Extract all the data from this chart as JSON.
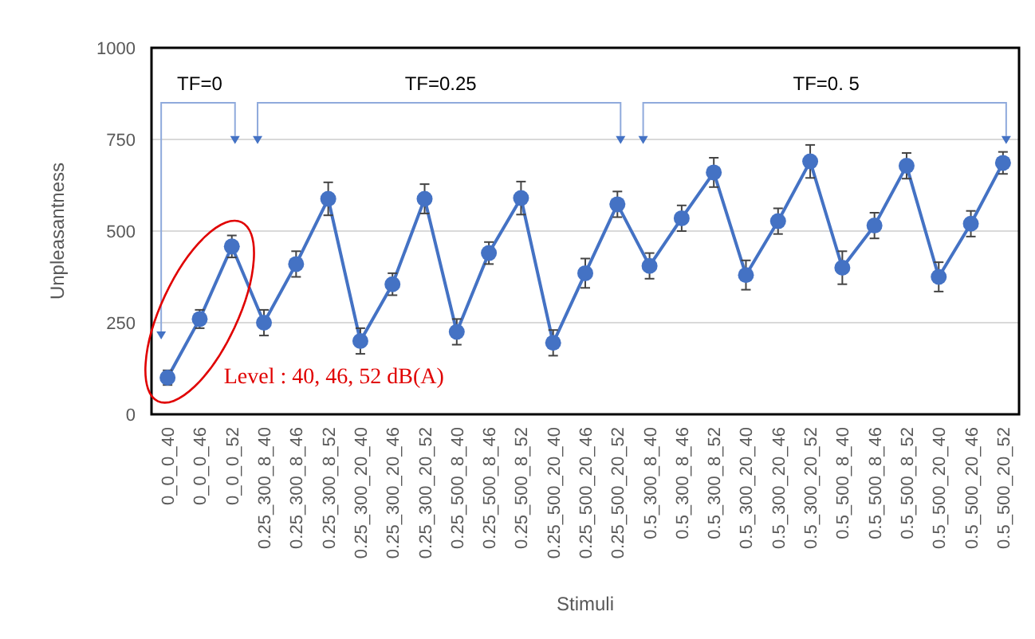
{
  "chart_data": {
    "type": "line",
    "xlabel": "Stimuli",
    "ylabel": "Unpleasantness",
    "categories": [
      "0_0_0_40",
      "0_0_0_46",
      "0_0_0_52",
      "0.25_300_8_40",
      "0.25_300_8_46",
      "0.25_300_8_52",
      "0.25_300_20_40",
      "0.25_300_20_46",
      "0.25_300_20_52",
      "0.25_500_8_40",
      "0.25_500_8_46",
      "0.25_500_8_52",
      "0.25_500_20_40",
      "0.25_500_20_46",
      "0.25_500_20_52",
      "0.5_300_8_40",
      "0.5_300_8_46",
      "0.5_300_8_52",
      "0.5_300_20_40",
      "0.5_300_20_46",
      "0.5_300_20_52",
      "0.5_500_8_40",
      "0.5_500_8_46",
      "0.5_500_8_52",
      "0.5_500_20_40",
      "0.5_500_20_46",
      "0.5_500_20_52"
    ],
    "series": [
      {
        "color": "#4472c4",
        "values": [
          100,
          260,
          458,
          250,
          410,
          588,
          200,
          355,
          588,
          225,
          440,
          590,
          195,
          385,
          573,
          405,
          535,
          660,
          380,
          527,
          690,
          400,
          515,
          678,
          375,
          520,
          686
        ],
        "errors": [
          20,
          25,
          30,
          35,
          35,
          45,
          35,
          30,
          40,
          35,
          30,
          45,
          35,
          40,
          35,
          35,
          35,
          40,
          40,
          35,
          45,
          45,
          35,
          35,
          40,
          35,
          30
        ]
      }
    ],
    "ylim": [
      0,
      1000
    ],
    "yticks": [
      0,
      250,
      500,
      750,
      1000
    ],
    "grid": "y",
    "marker": "circle",
    "line_style": "solid",
    "annotations": [
      "TF=0",
      "TF=0.25",
      "TF=0. 5",
      "Level : 40, 46, 52 dB(A)"
    ]
  }
}
